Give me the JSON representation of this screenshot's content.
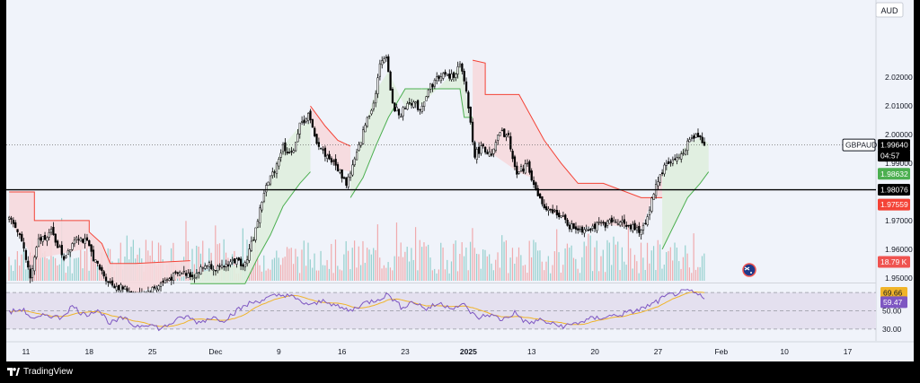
{
  "header": {
    "currency_label": "AUD"
  },
  "price_tags": {
    "symbol": "GBPAUD",
    "last": "1.99640",
    "countdown": "04:57",
    "st_up": "1.98632",
    "hline": "1.98076",
    "st_down": "1.97559",
    "volume": "18.79 K",
    "rsi_a": "69.66",
    "rsi_b": "59.47"
  },
  "footer": {
    "brand": "TradingView"
  },
  "colors": {
    "bg": "#f0f3fa",
    "up": "#26a69a",
    "down": "#ef5350",
    "candle": "#000000",
    "st_up_line": "#4caf50",
    "st_up_fill": "#dfeede",
    "st_down_line": "#f44336",
    "st_down_fill": "#f6d9dd",
    "rsi_line": "#7e57c2",
    "rsi_ma": "#f0b429",
    "rsi_band": "#e4e0ef",
    "hline": "#000000"
  },
  "chart_data": {
    "type": "candlestick",
    "symbol": "GBPAUD",
    "price_ylim": [
      1.949,
      2.047
    ],
    "y_ticks": [
      "2.02000",
      "2.01000",
      "2.00000",
      "1.99000",
      "1.97000",
      "1.96000",
      "1.95000"
    ],
    "y_tick_values": [
      2.02,
      2.01,
      2.0,
      1.99,
      1.97,
      1.96,
      1.95
    ],
    "x_ticks": [
      "11",
      "18",
      "25",
      "Dec",
      "9",
      "16",
      "23",
      "2025",
      "13",
      "20",
      "27",
      "Feb",
      "10",
      "17"
    ],
    "x_tick_index": [
      8,
      38,
      68,
      98,
      128,
      158,
      188,
      218,
      248,
      278,
      308,
      338,
      368,
      398
    ],
    "horizontal_line": 1.98076,
    "last_price": 1.9964,
    "price_anchors": [
      [
        0,
        1.97
      ],
      [
        5,
        1.966
      ],
      [
        10,
        1.95
      ],
      [
        14,
        1.963
      ],
      [
        20,
        1.966
      ],
      [
        26,
        1.957
      ],
      [
        32,
        1.965
      ],
      [
        37,
        1.962
      ],
      [
        42,
        1.954
      ],
      [
        48,
        1.948
      ],
      [
        55,
        1.946
      ],
      [
        62,
        1.944
      ],
      [
        68,
        1.946
      ],
      [
        74,
        1.949
      ],
      [
        82,
        1.952
      ],
      [
        88,
        1.951
      ],
      [
        94,
        1.955
      ],
      [
        100,
        1.953
      ],
      [
        106,
        1.956
      ],
      [
        112,
        1.955
      ],
      [
        116,
        1.964
      ],
      [
        121,
        1.98
      ],
      [
        126,
        1.988
      ],
      [
        130,
        1.996
      ],
      [
        134,
        1.993
      ],
      [
        138,
        2.003
      ],
      [
        142,
        2.007
      ],
      [
        145,
        1.999
      ],
      [
        149,
        1.994
      ],
      [
        153,
        1.991
      ],
      [
        157,
        1.987
      ],
      [
        160,
        1.983
      ],
      [
        165,
        1.993
      ],
      [
        170,
        2.006
      ],
      [
        173,
        2.011
      ],
      [
        176,
        2.024
      ],
      [
        179,
        2.028
      ],
      [
        182,
        2.01
      ],
      [
        186,
        2.007
      ],
      [
        190,
        2.012
      ],
      [
        195,
        2.009
      ],
      [
        200,
        2.017
      ],
      [
        205,
        2.021
      ],
      [
        210,
        2.02
      ],
      [
        214,
        2.024
      ],
      [
        217,
        2.015
      ],
      [
        221,
        1.993
      ],
      [
        225,
        1.996
      ],
      [
        229,
        1.992
      ],
      [
        233,
        2.001
      ],
      [
        237,
        1.999
      ],
      [
        241,
        1.986
      ],
      [
        246,
        1.99
      ],
      [
        250,
        1.98
      ],
      [
        255,
        1.973
      ],
      [
        260,
        1.973
      ],
      [
        266,
        1.968
      ],
      [
        272,
        1.967
      ],
      [
        278,
        1.968
      ],
      [
        284,
        1.969
      ],
      [
        290,
        1.97
      ],
      [
        295,
        1.968
      ],
      [
        299,
        1.966
      ],
      [
        303,
        1.971
      ],
      [
        307,
        1.983
      ],
      [
        312,
        1.99
      ],
      [
        318,
        1.992
      ],
      [
        323,
        1.998
      ],
      [
        327,
        2.0
      ],
      [
        330,
        1.997
      ]
    ],
    "supertrend": [
      {
        "dir": "down",
        "pts": [
          [
            0,
            1.98
          ],
          [
            12,
            1.98
          ],
          [
            12,
            1.97
          ],
          [
            38,
            1.97
          ],
          [
            38,
            1.966
          ],
          [
            44,
            1.962
          ],
          [
            48,
            1.955
          ],
          [
            60,
            1.955
          ],
          [
            60,
            1.955
          ],
          [
            86,
            1.956
          ]
        ]
      },
      {
        "dir": "up",
        "pts": [
          [
            86,
            1.948
          ],
          [
            112,
            1.948
          ],
          [
            118,
            1.957
          ],
          [
            124,
            1.965
          ],
          [
            130,
            1.975
          ],
          [
            138,
            1.983
          ],
          [
            143,
            1.987
          ]
        ]
      },
      {
        "dir": "down",
        "pts": [
          [
            143,
            2.01
          ],
          [
            150,
            2.003
          ],
          [
            156,
            1.998
          ],
          [
            162,
            1.996
          ]
        ]
      },
      {
        "dir": "up",
        "pts": [
          [
            162,
            1.978
          ],
          [
            168,
            1.985
          ],
          [
            174,
            1.996
          ],
          [
            180,
            2.006
          ],
          [
            188,
            2.016
          ],
          [
            196,
            2.016
          ]
        ]
      },
      {
        "dir": "up",
        "pts": [
          [
            196,
            2.016
          ],
          [
            214,
            2.016
          ],
          [
            216,
            2.006
          ],
          [
            220,
            2.006
          ]
        ]
      },
      {
        "dir": "down",
        "pts": [
          [
            220,
            2.026
          ],
          [
            226,
            2.025
          ],
          [
            226,
            2.014
          ],
          [
            242,
            2.014
          ],
          [
            248,
            2.006
          ],
          [
            254,
            1.998
          ],
          [
            262,
            1.99
          ],
          [
            270,
            1.983
          ],
          [
            282,
            1.983
          ],
          [
            300,
            1.978
          ],
          [
            310,
            1.978
          ]
        ]
      },
      {
        "dir": "up",
        "pts": [
          [
            310,
            1.96
          ],
          [
            316,
            1.969
          ],
          [
            322,
            1.978
          ],
          [
            328,
            1.983
          ],
          [
            332,
            1.987
          ]
        ]
      }
    ],
    "rsi_levels": [
      70,
      50,
      30
    ],
    "rsi_ylim": [
      22,
      78
    ],
    "rsi_anchors": [
      [
        0,
        48
      ],
      [
        6,
        52
      ],
      [
        12,
        40
      ],
      [
        18,
        46
      ],
      [
        24,
        42
      ],
      [
        30,
        55
      ],
      [
        36,
        45
      ],
      [
        42,
        52
      ],
      [
        48,
        36
      ],
      [
        54,
        42
      ],
      [
        60,
        33
      ],
      [
        66,
        36
      ],
      [
        72,
        30
      ],
      [
        78,
        38
      ],
      [
        84,
        44
      ],
      [
        90,
        37
      ],
      [
        96,
        43
      ],
      [
        102,
        40
      ],
      [
        108,
        50
      ],
      [
        114,
        58
      ],
      [
        120,
        62
      ],
      [
        126,
        66
      ],
      [
        132,
        68
      ],
      [
        138,
        60
      ],
      [
        144,
        56
      ],
      [
        150,
        62
      ],
      [
        156,
        54
      ],
      [
        162,
        50
      ],
      [
        168,
        58
      ],
      [
        174,
        62
      ],
      [
        180,
        68
      ],
      [
        186,
        54
      ],
      [
        192,
        60
      ],
      [
        198,
        52
      ],
      [
        204,
        58
      ],
      [
        210,
        54
      ],
      [
        216,
        56
      ],
      [
        222,
        42
      ],
      [
        228,
        46
      ],
      [
        234,
        40
      ],
      [
        240,
        48
      ],
      [
        246,
        36
      ],
      [
        252,
        40
      ],
      [
        258,
        35
      ],
      [
        264,
        33
      ],
      [
        270,
        37
      ],
      [
        276,
        41
      ],
      [
        282,
        43
      ],
      [
        288,
        45
      ],
      [
        294,
        48
      ],
      [
        300,
        52
      ],
      [
        306,
        58
      ],
      [
        312,
        66
      ],
      [
        318,
        70
      ],
      [
        324,
        71
      ],
      [
        330,
        63
      ]
    ]
  }
}
